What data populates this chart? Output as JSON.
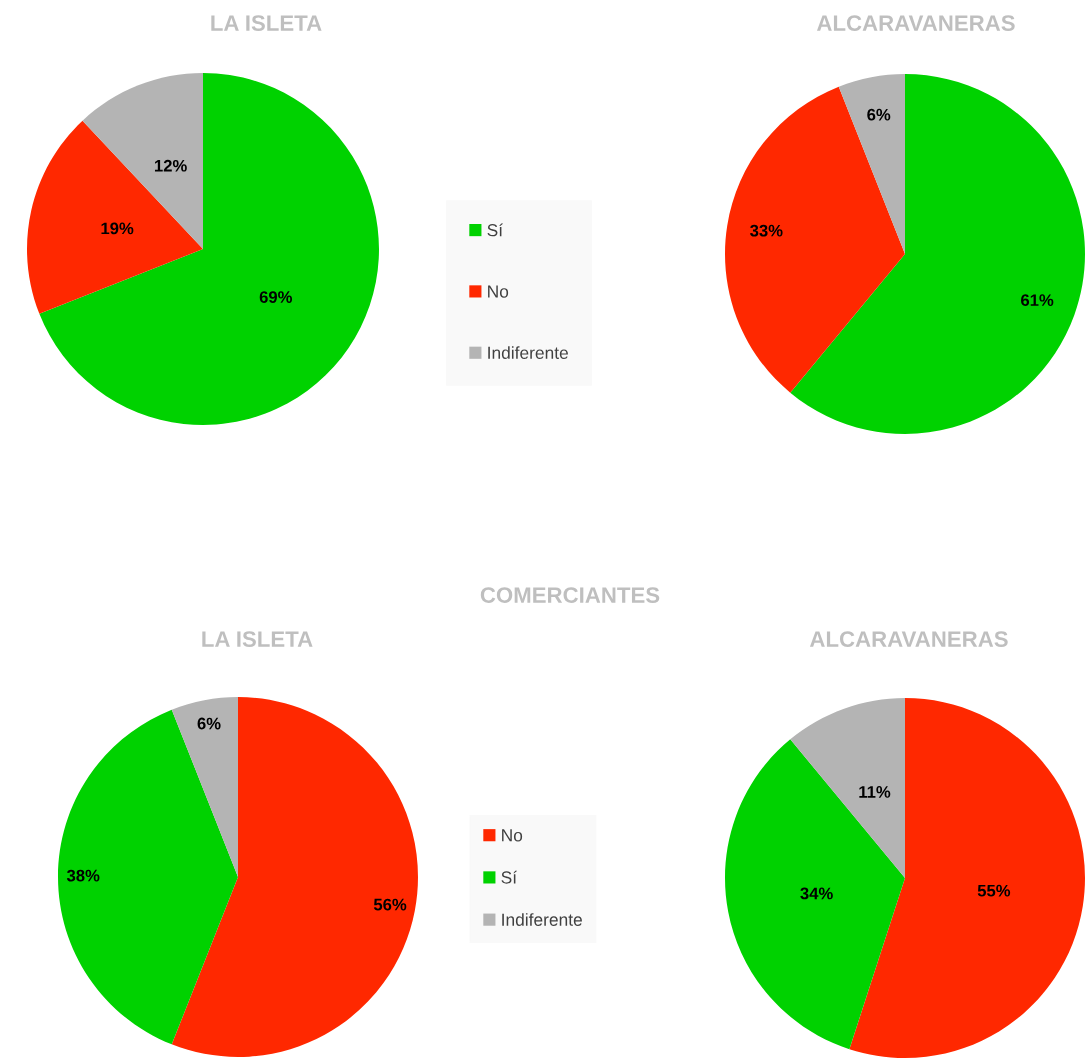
{
  "chart_data": [
    {
      "type": "pie",
      "categories": [
        "Sí",
        "No",
        "Indiferente"
      ],
      "colors": [
        "#00d200",
        "#ff2800",
        "#b4b4b4"
      ],
      "legend": "center",
      "series": [
        {
          "name": "LA ISLETA",
          "values": [
            69,
            19,
            12
          ],
          "value_labels": [
            "69%",
            "19%",
            "12%"
          ]
        },
        {
          "name": "ALCARAVANERAS",
          "values": [
            61,
            33,
            6
          ],
          "value_labels": [
            "61%",
            "33%",
            "6%"
          ]
        }
      ]
    },
    {
      "type": "pie",
      "title": "COMERCIANTES",
      "categories": [
        "No",
        "Sí",
        "Indiferente"
      ],
      "colors": [
        "#ff2800",
        "#00d200",
        "#b4b4b4"
      ],
      "legend": "center",
      "series": [
        {
          "name": "LA ISLETA",
          "values": [
            56,
            38,
            6
          ],
          "value_labels": [
            "56%",
            "38%",
            "6%"
          ]
        },
        {
          "name": "ALCARAVANERAS",
          "values": [
            55,
            34,
            11
          ],
          "value_labels": [
            "55%",
            "34%",
            "11%"
          ]
        }
      ]
    }
  ]
}
